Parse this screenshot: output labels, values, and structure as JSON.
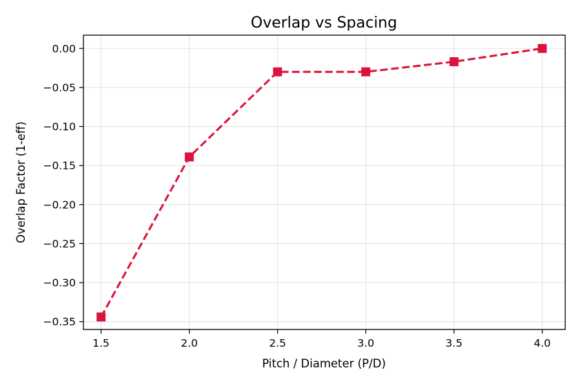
{
  "chart_data": {
    "type": "line",
    "title": "Overlap vs Spacing",
    "xlabel": "Pitch / Diameter (P/D)",
    "ylabel": "Overlap Factor (1-eff)",
    "xlim": [
      1.4,
      4.13
    ],
    "ylim": [
      -0.36,
      0.017
    ],
    "x_ticks": [
      1.5,
      2.0,
      2.5,
      3.0,
      3.5,
      4.0
    ],
    "x_tick_labels": [
      "1.5",
      "2.0",
      "2.5",
      "3.0",
      "3.5",
      "4.0"
    ],
    "y_ticks": [
      0.0,
      -0.05,
      -0.1,
      -0.15,
      -0.2,
      -0.25,
      -0.3,
      -0.35
    ],
    "y_tick_labels": [
      "0.00",
      "−0.05",
      "−0.10",
      "−0.15",
      "−0.20",
      "−0.25",
      "−0.30",
      "−0.35"
    ],
    "grid": true,
    "series": [
      {
        "x": [
          1.5,
          2.0,
          2.5,
          3.0,
          3.5,
          4.0
        ],
        "y": [
          -0.344,
          -0.139,
          -0.03,
          -0.03,
          -0.017,
          0.0
        ],
        "color": "#dc143c",
        "line_style": "dashed",
        "marker": "square"
      }
    ]
  }
}
